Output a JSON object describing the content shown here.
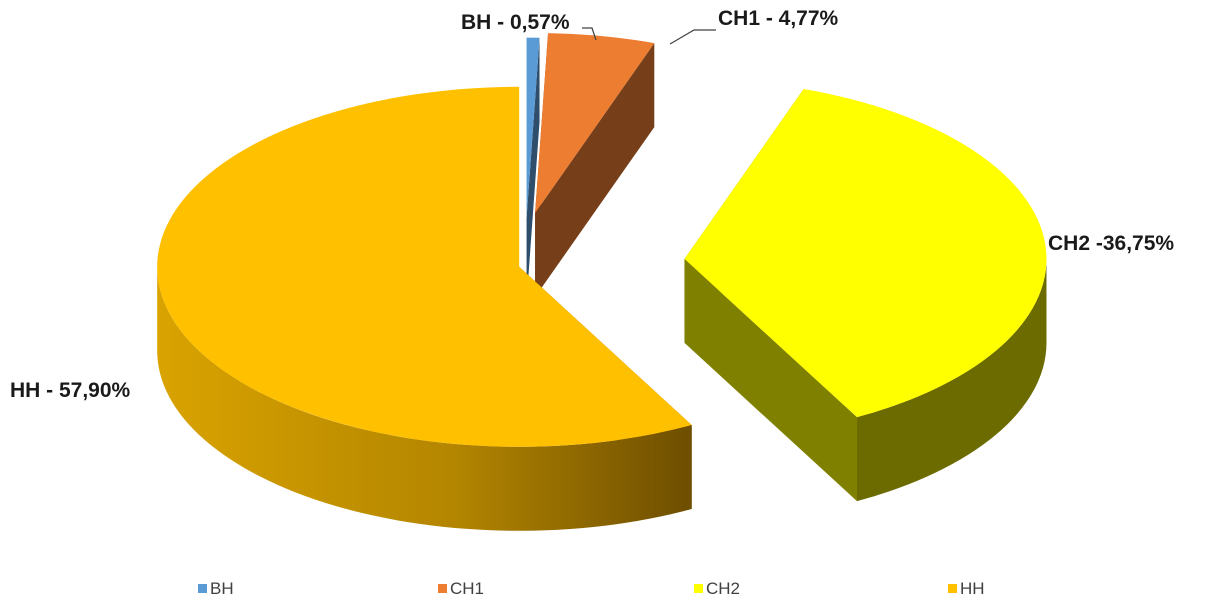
{
  "chart_data": {
    "type": "pie",
    "variant": "3d-exploded",
    "title": "",
    "categories": [
      "BH",
      "CH1",
      "CH2",
      "HH"
    ],
    "values": [
      0.57,
      4.77,
      36.75,
      57.9
    ],
    "data_labels": [
      "BH - 0,57%",
      "CH1 - 4,77%",
      "CH2 -36,75%",
      "HH - 57,90%"
    ],
    "colors": [
      "#5B9BD5",
      "#ED7D31",
      "#FFFF00",
      "#FFC000"
    ],
    "legend": {
      "position": "bottom",
      "entries": [
        "BH",
        "CH1",
        "CH2",
        "HH"
      ]
    }
  }
}
